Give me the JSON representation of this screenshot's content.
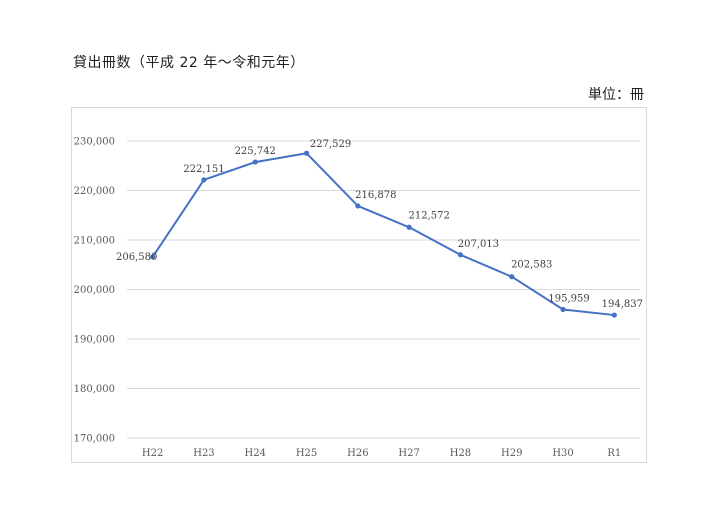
{
  "header": {
    "title": "貸出冊数（平成 22 年～令和元年）",
    "unit": "単位：冊"
  },
  "colors": {
    "line": "#4472c4",
    "grid": "#d9d9d9",
    "text": "#595959"
  },
  "chart_data": {
    "type": "line",
    "title": "",
    "xlabel": "",
    "ylabel": "",
    "categories": [
      "H22",
      "H23",
      "H24",
      "H25",
      "H26",
      "H27",
      "H28",
      "H29",
      "H30",
      "R1"
    ],
    "series": [
      {
        "values": [
          206580,
          222151,
          225742,
          227529,
          216878,
          212572,
          207013,
          202583,
          195959,
          194837
        ],
        "labels": [
          "206,580",
          "222,151",
          "225,742",
          "227,529",
          "216,878",
          "212,572",
          "207,013",
          "202,583",
          "195,959",
          "194,837"
        ]
      }
    ],
    "ylim": [
      170000,
      230000
    ],
    "yticks": [
      170000,
      180000,
      190000,
      200000,
      210000,
      220000,
      230000
    ],
    "ytick_labels": [
      "170,000",
      "180,000",
      "190,000",
      "200,000",
      "210,000",
      "220,000",
      "230,000"
    ],
    "grid": true,
    "legend": "none"
  }
}
